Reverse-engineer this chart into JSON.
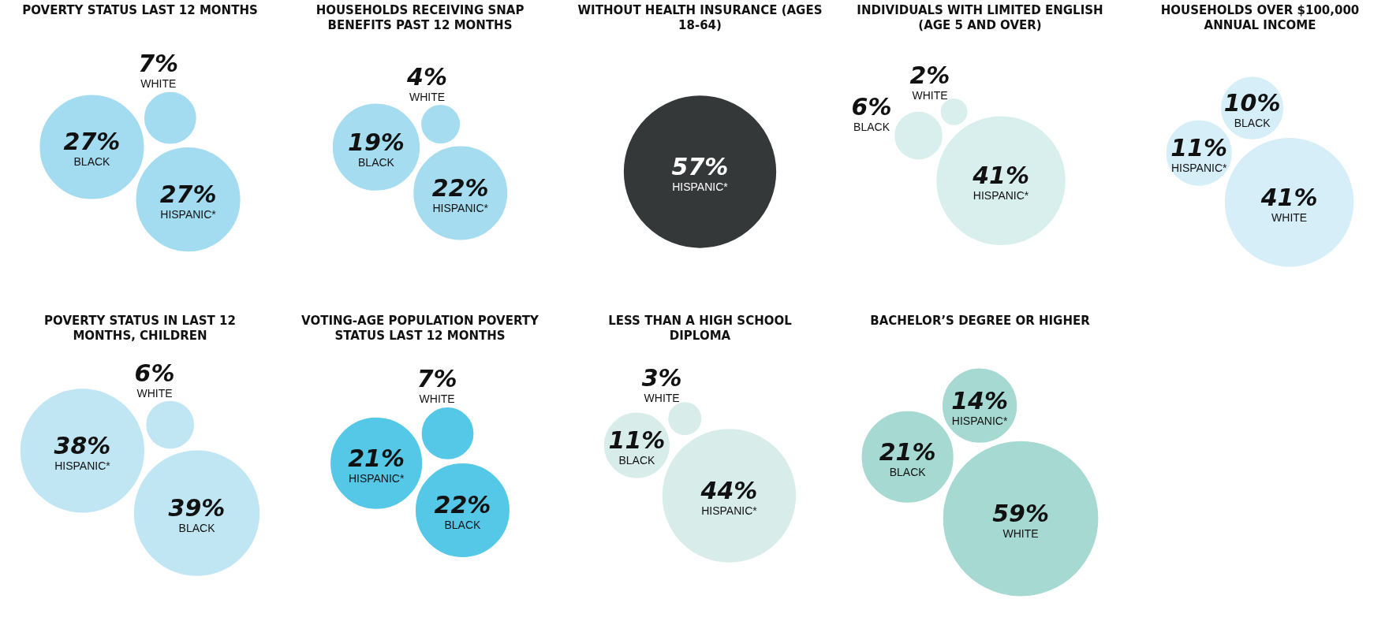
{
  "chart_data": [
    {
      "type": "other",
      "title": "POVERTY STATUS LAST 12 MONTHS",
      "categories": [
        "HISPANIC*",
        "BLACK",
        "WHITE"
      ],
      "values": [
        27,
        27,
        7
      ],
      "value_labels": [
        "27%",
        "27%",
        "7%"
      ],
      "colors": [
        "#a3dcf0",
        "#a3dcf0",
        "#a3dcf0"
      ]
    },
    {
      "type": "other",
      "title": "HOUSEHOLDS RECEIVING SNAP BENEFITS PAST 12 MONTHS",
      "categories": [
        "HISPANIC*",
        "BLACK",
        "WHITE"
      ],
      "values": [
        22,
        19,
        4
      ],
      "value_labels": [
        "22%",
        "19%",
        "4%"
      ],
      "colors": [
        "#a6dcef",
        "#a6dcef",
        "#a6dcef"
      ]
    },
    {
      "type": "other",
      "title": "WITHOUT HEALTH INSURANCE (AGES 18-64)",
      "categories": [
        "HISPANIC*"
      ],
      "values": [
        57
      ],
      "value_labels": [
        "57%"
      ],
      "colors": [
        "#353839"
      ]
    },
    {
      "type": "other",
      "title": "INDIVIDUALS WITH LIMITED ENGLISH (AGE 5 AND OVER)",
      "categories": [
        "HISPANIC*",
        "BLACK",
        "WHITE"
      ],
      "values": [
        41,
        6,
        2
      ],
      "value_labels": [
        "41%",
        "6%",
        "2%"
      ],
      "colors": [
        "#d8efed",
        "#d8efed",
        "#d8efed"
      ]
    },
    {
      "type": "other",
      "title": "HOUSEHOLDS OVER $100,000 ANNUAL INCOME",
      "categories": [
        "WHITE",
        "HISPANIC*",
        "BLACK"
      ],
      "values": [
        41,
        11,
        10
      ],
      "value_labels": [
        "41%",
        "11%",
        "10%"
      ],
      "colors": [
        "#d6eef8",
        "#d6eef8",
        "#d6eef8"
      ]
    },
    {
      "type": "other",
      "title": "POVERTY STATUS IN LAST 12 MONTHS, CHILDREN",
      "categories": [
        "BLACK",
        "HISPANIC*",
        "WHITE"
      ],
      "values": [
        39,
        38,
        6
      ],
      "value_labels": [
        "39%",
        "38%",
        "6%"
      ],
      "colors": [
        "#c0e6f4",
        "#c0e6f4",
        "#c0e6f4"
      ]
    },
    {
      "type": "other",
      "title": "VOTING-AGE POPULATION POVERTY STATUS LAST 12 MONTHS",
      "categories": [
        "BLACK",
        "HISPANIC*",
        "WHITE"
      ],
      "values": [
        22,
        21,
        7
      ],
      "value_labels": [
        "22%",
        "21%",
        "7%"
      ],
      "colors": [
        "#55c8e8",
        "#55c8e8",
        "#55c8e8"
      ]
    },
    {
      "type": "other",
      "title": "LESS THAN A HIGH SCHOOL DIPLOMA",
      "categories": [
        "HISPANIC*",
        "BLACK",
        "WHITE"
      ],
      "values": [
        44,
        11,
        3
      ],
      "value_labels": [
        "44%",
        "11%",
        "3%"
      ],
      "colors": [
        "#d8ede9",
        "#d8ede9",
        "#d8ede9"
      ]
    },
    {
      "type": "other",
      "title": "BACHELOR’S DEGREE OR HIGHER",
      "categories": [
        "WHITE",
        "BLACK",
        "HISPANIC*"
      ],
      "values": [
        59,
        21,
        14
      ],
      "value_labels": [
        "59%",
        "21%",
        "14%"
      ],
      "colors": [
        "#a5d9d1",
        "#a5d9d1",
        "#a5d9d1"
      ]
    }
  ]
}
